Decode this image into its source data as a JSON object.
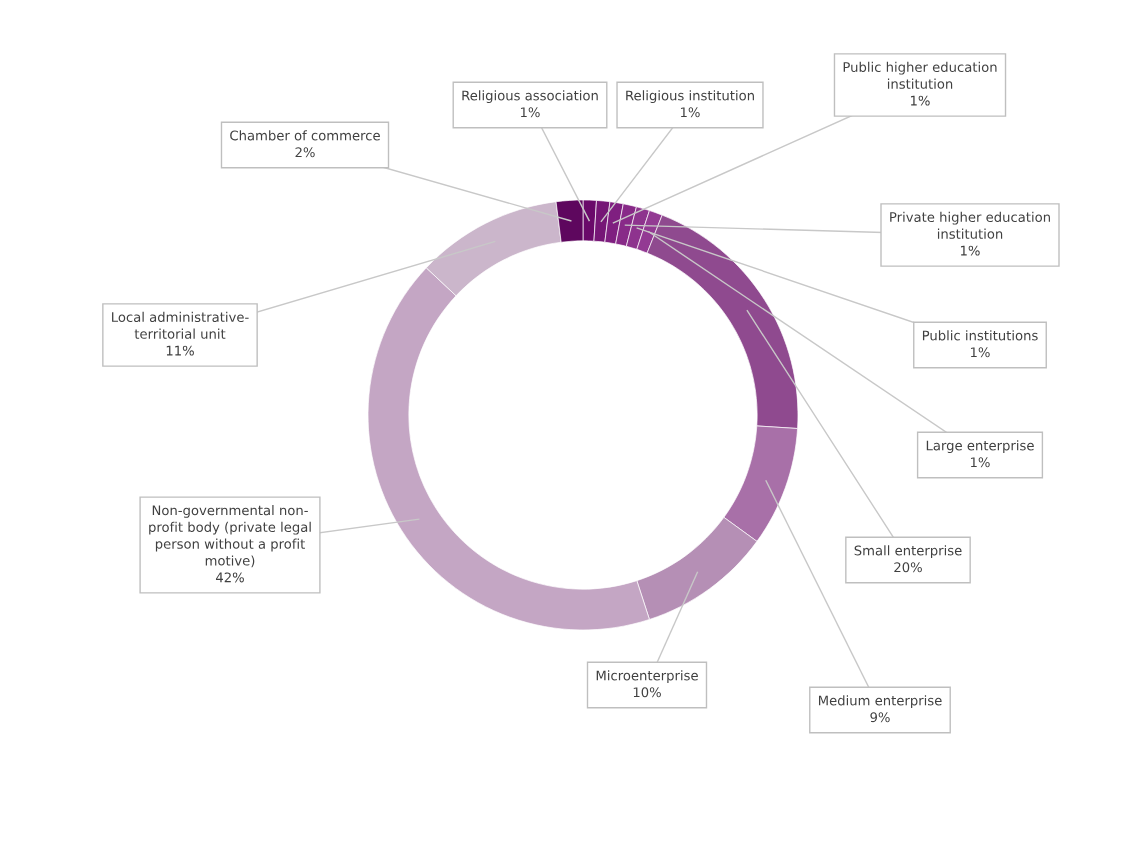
{
  "chart_data": {
    "type": "donut",
    "categories": [
      "Religious association",
      "Religious institution",
      "Public higher education\ninstitution",
      "Private higher education\ninstitution",
      "Public institutions",
      "Large enterprise",
      "Small enterprise",
      "Medium enterprise",
      "Microenterprise",
      "Non-governmental non-\nprofit body (private legal\nperson without a profit\nmotive)",
      "Local administrative-\nterritorial unit",
      "Chamber of commerce"
    ],
    "values": [
      1,
      1,
      1,
      1,
      1,
      1,
      20,
      9,
      10,
      42,
      11,
      2
    ],
    "value_labels": [
      "1%",
      "1%",
      "1%",
      "1%",
      "1%",
      "1%",
      "20%",
      "9%",
      "10%",
      "42%",
      "11%",
      "2%"
    ],
    "colors": [
      "#6a0a6a",
      "#761676",
      "#7f1f80",
      "#882a88",
      "#8e338e",
      "#933a93",
      "#8f4a8f",
      "#a870a8",
      "#b58fb5",
      "#c4a6c4",
      "#cbb6cb",
      "#5e075e"
    ]
  }
}
